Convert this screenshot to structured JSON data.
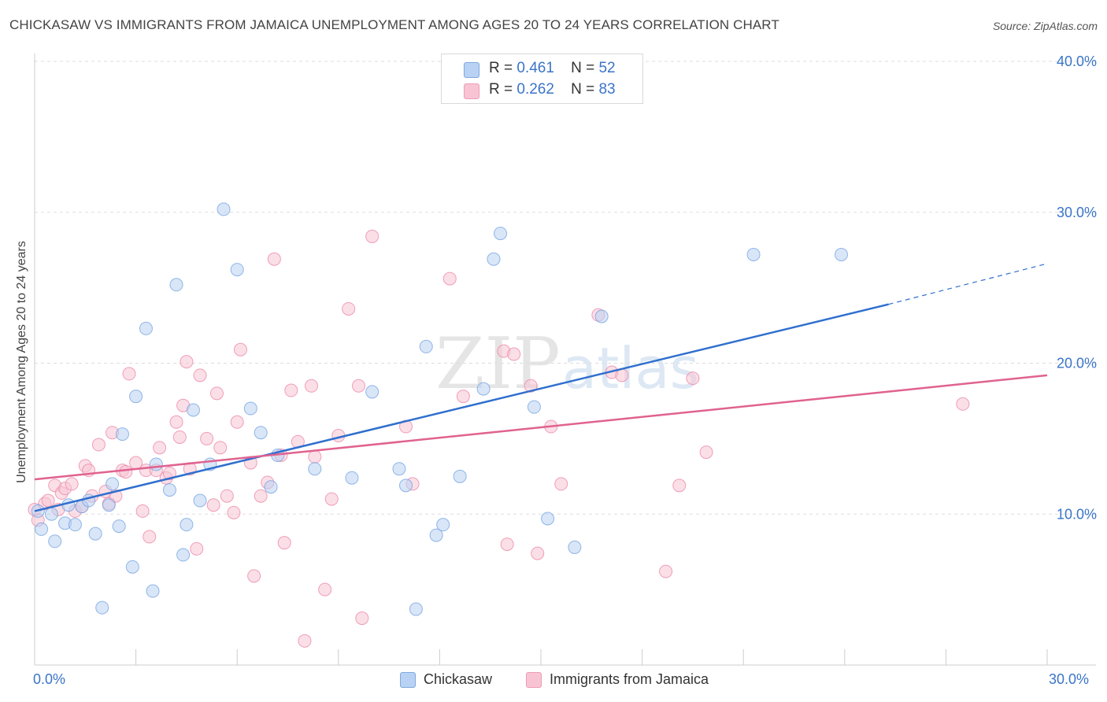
{
  "header": {
    "title": "CHICKASAW VS IMMIGRANTS FROM JAMAICA UNEMPLOYMENT AMONG AGES 20 TO 24 YEARS CORRELATION CHART",
    "source": "Source: ZipAtlas.com"
  },
  "watermark": {
    "text_main": "ZIP",
    "text_sub": "atlas"
  },
  "legend": {
    "rows": [
      {
        "r_label": "R =",
        "r_value": "0.461",
        "n_label": "N =",
        "n_value": "52",
        "color": "#b9d2f3"
      },
      {
        "r_label": "R =",
        "r_value": "0.262",
        "n_label": "N =",
        "n_value": "83",
        "color": "#f8c4d4"
      }
    ],
    "bottom": [
      {
        "label": "Chickasaw",
        "color": "#b9d2f3"
      },
      {
        "label": "Immigrants from Jamaica",
        "color": "#f8c4d4"
      }
    ]
  },
  "chart_data": {
    "type": "scatter",
    "title": "CHICKASAW VS IMMIGRANTS FROM JAMAICA UNEMPLOYMENT AMONG AGES 20 TO 24 YEARS CORRELATION CHART",
    "xlabel": "",
    "ylabel": "Unemployment Among Ages 20 to 24 years",
    "xlim": [
      0,
      30
    ],
    "ylim": [
      0,
      40
    ],
    "x_tick_labels": [
      "0.0%",
      "30.0%"
    ],
    "y_ticks": [
      10,
      20,
      30,
      40
    ],
    "y_tick_labels": [
      "10.0%",
      "20.0%",
      "30.0%",
      "40.0%"
    ],
    "grid": true,
    "legend_position": "top-center",
    "series": [
      {
        "name": "Chickasaw",
        "color": "#6fa0e0",
        "fill": "#b9d2f3",
        "trend": {
          "x": [
            0,
            25.3
          ],
          "y": [
            10.2,
            23.9
          ],
          "extended_to": [
            30,
            26.6
          ]
        },
        "points": [
          [
            0.1,
            10.2
          ],
          [
            0.2,
            9.0
          ],
          [
            0.5,
            10.0
          ],
          [
            0.6,
            8.2
          ],
          [
            0.9,
            9.4
          ],
          [
            1.0,
            10.6
          ],
          [
            1.2,
            9.3
          ],
          [
            1.4,
            10.5
          ],
          [
            1.6,
            10.9
          ],
          [
            1.8,
            8.7
          ],
          [
            2.0,
            3.8
          ],
          [
            2.2,
            10.6
          ],
          [
            2.3,
            12.0
          ],
          [
            2.5,
            9.2
          ],
          [
            2.6,
            15.3
          ],
          [
            2.9,
            6.5
          ],
          [
            3.0,
            17.8
          ],
          [
            3.3,
            22.3
          ],
          [
            3.5,
            4.9
          ],
          [
            3.6,
            13.3
          ],
          [
            4.0,
            11.6
          ],
          [
            4.2,
            25.2
          ],
          [
            4.4,
            7.3
          ],
          [
            4.5,
            9.3
          ],
          [
            4.7,
            16.9
          ],
          [
            4.9,
            10.9
          ],
          [
            5.2,
            13.3
          ],
          [
            5.6,
            30.2
          ],
          [
            6.0,
            26.2
          ],
          [
            6.4,
            17.0
          ],
          [
            6.7,
            15.4
          ],
          [
            7.2,
            13.9
          ],
          [
            7.0,
            11.8
          ],
          [
            8.3,
            13.0
          ],
          [
            9.4,
            12.4
          ],
          [
            10.0,
            18.1
          ],
          [
            10.8,
            13.0
          ],
          [
            11.0,
            11.9
          ],
          [
            11.3,
            3.7
          ],
          [
            11.6,
            21.1
          ],
          [
            11.9,
            8.6
          ],
          [
            12.1,
            9.3
          ],
          [
            12.6,
            12.5
          ],
          [
            13.3,
            18.3
          ],
          [
            13.6,
            26.9
          ],
          [
            13.8,
            28.6
          ],
          [
            14.8,
            17.1
          ],
          [
            15.2,
            9.7
          ],
          [
            16.0,
            7.8
          ],
          [
            16.8,
            23.1
          ],
          [
            21.3,
            27.2
          ],
          [
            23.9,
            27.2
          ]
        ]
      },
      {
        "name": "Immigrants from Jamaica",
        "color": "#eb82a5",
        "fill": "#f8c4d4",
        "trend": {
          "x": [
            0,
            30
          ],
          "y": [
            12.3,
            19.2
          ]
        },
        "points": [
          [
            0.0,
            10.3
          ],
          [
            0.1,
            9.6
          ],
          [
            0.3,
            10.7
          ],
          [
            0.4,
            10.9
          ],
          [
            0.6,
            11.9
          ],
          [
            0.7,
            10.3
          ],
          [
            0.8,
            11.4
          ],
          [
            0.9,
            11.7
          ],
          [
            1.1,
            12.0
          ],
          [
            1.2,
            10.2
          ],
          [
            1.4,
            10.5
          ],
          [
            1.5,
            13.2
          ],
          [
            1.6,
            12.9
          ],
          [
            1.7,
            11.2
          ],
          [
            1.9,
            14.6
          ],
          [
            2.1,
            11.5
          ],
          [
            2.2,
            10.7
          ],
          [
            2.3,
            15.4
          ],
          [
            2.4,
            11.2
          ],
          [
            2.6,
            12.9
          ],
          [
            2.7,
            12.8
          ],
          [
            2.8,
            19.3
          ],
          [
            3.0,
            13.4
          ],
          [
            3.2,
            10.2
          ],
          [
            3.3,
            12.9
          ],
          [
            3.4,
            8.5
          ],
          [
            3.6,
            12.9
          ],
          [
            3.7,
            14.4
          ],
          [
            3.9,
            12.4
          ],
          [
            4.0,
            12.7
          ],
          [
            4.2,
            16.1
          ],
          [
            4.3,
            15.1
          ],
          [
            4.4,
            17.2
          ],
          [
            4.5,
            20.1
          ],
          [
            4.6,
            13.0
          ],
          [
            4.8,
            7.7
          ],
          [
            4.9,
            19.2
          ],
          [
            5.1,
            15.0
          ],
          [
            5.3,
            10.6
          ],
          [
            5.4,
            18.0
          ],
          [
            5.5,
            14.4
          ],
          [
            5.7,
            11.2
          ],
          [
            5.9,
            10.1
          ],
          [
            6.0,
            16.1
          ],
          [
            6.1,
            20.9
          ],
          [
            6.4,
            13.4
          ],
          [
            6.5,
            5.9
          ],
          [
            6.7,
            11.2
          ],
          [
            6.9,
            12.1
          ],
          [
            7.1,
            26.9
          ],
          [
            7.3,
            13.9
          ],
          [
            7.4,
            8.1
          ],
          [
            7.6,
            18.2
          ],
          [
            7.8,
            14.8
          ],
          [
            8.0,
            1.6
          ],
          [
            8.2,
            18.5
          ],
          [
            8.3,
            13.8
          ],
          [
            8.6,
            5.0
          ],
          [
            8.8,
            11.0
          ],
          [
            9.0,
            15.2
          ],
          [
            9.3,
            23.6
          ],
          [
            9.6,
            18.5
          ],
          [
            9.7,
            3.1
          ],
          [
            10.0,
            28.4
          ],
          [
            11.0,
            15.8
          ],
          [
            11.2,
            12.0
          ],
          [
            12.3,
            25.6
          ],
          [
            12.7,
            17.8
          ],
          [
            13.9,
            20.8
          ],
          [
            14.0,
            8.0
          ],
          [
            14.2,
            20.6
          ],
          [
            14.7,
            18.5
          ],
          [
            14.9,
            7.4
          ],
          [
            15.3,
            15.8
          ],
          [
            15.6,
            12.0
          ],
          [
            16.7,
            23.2
          ],
          [
            17.1,
            19.4
          ],
          [
            17.4,
            19.2
          ],
          [
            18.7,
            6.2
          ],
          [
            19.1,
            11.9
          ],
          [
            19.5,
            19.0
          ],
          [
            19.9,
            14.1
          ],
          [
            27.5,
            17.3
          ]
        ]
      }
    ]
  }
}
